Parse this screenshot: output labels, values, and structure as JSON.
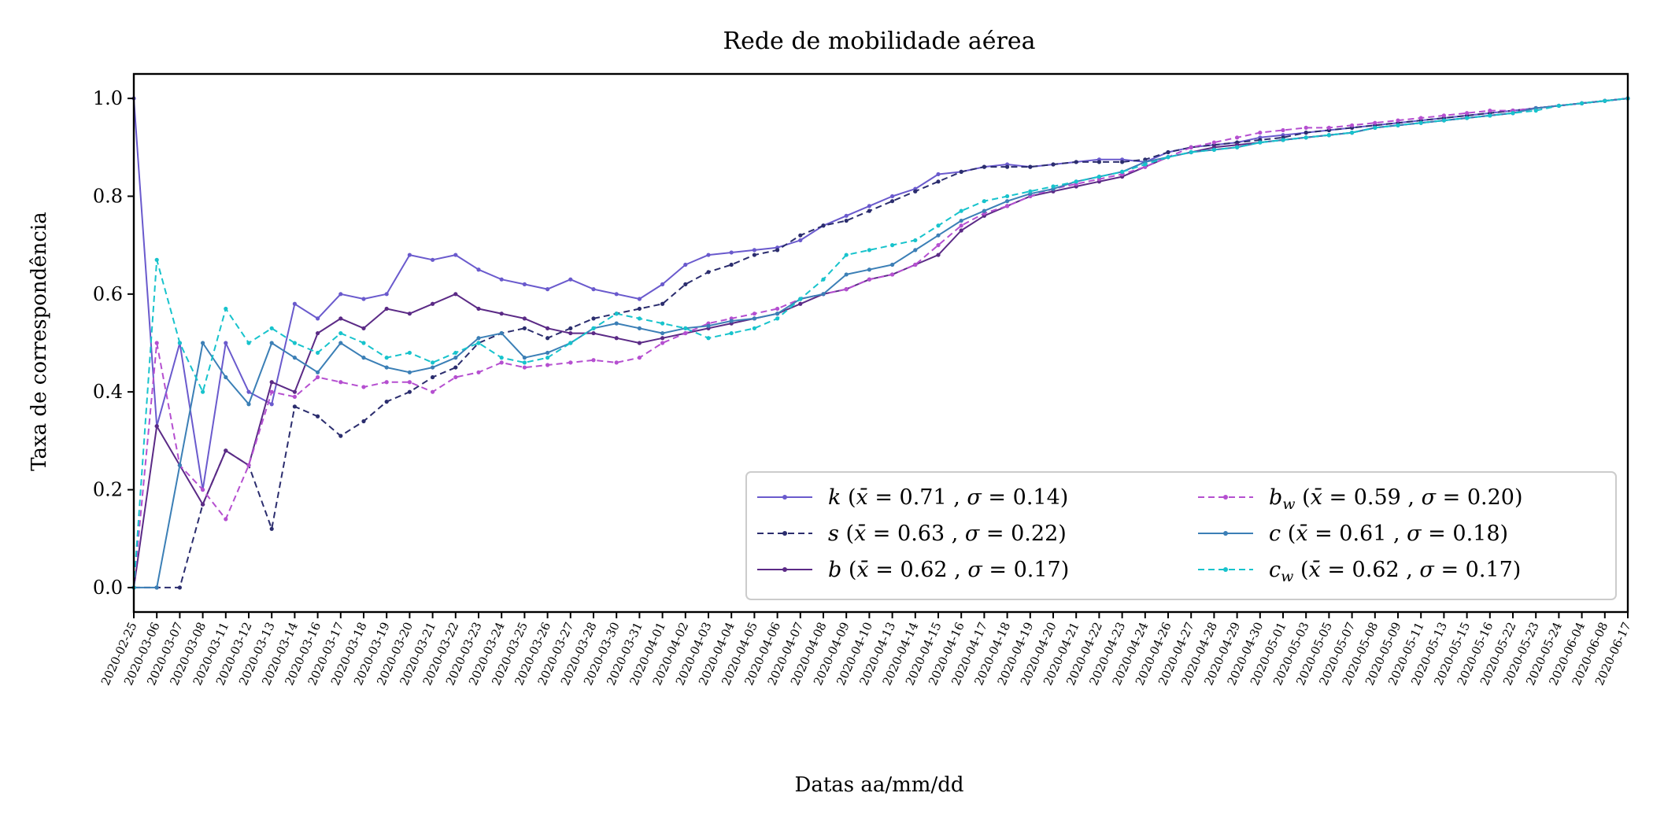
{
  "chart_data": {
    "type": "line",
    "title": "Rede de mobilidade aérea",
    "xlabel": "Datas aa/mm/dd",
    "ylabel": "Taxa de correspondência",
    "ylim": [
      -0.05,
      1.05
    ],
    "yticks": [
      "0.0",
      "0.2",
      "0.4",
      "0.6",
      "0.8",
      "1.0"
    ],
    "grid": false,
    "legend_location": "lower-right",
    "legend_columns": 2,
    "categories": [
      "2020-02-25",
      "2020-03-06",
      "2020-03-07",
      "2020-03-08",
      "2020-03-11",
      "2020-03-12",
      "2020-03-13",
      "2020-03-14",
      "2020-03-16",
      "2020-03-17",
      "2020-03-18",
      "2020-03-19",
      "2020-03-20",
      "2020-03-21",
      "2020-03-22",
      "2020-03-23",
      "2020-03-24",
      "2020-03-25",
      "2020-03-26",
      "2020-03-27",
      "2020-03-28",
      "2020-03-30",
      "2020-03-31",
      "2020-04-01",
      "2020-04-02",
      "2020-04-03",
      "2020-04-04",
      "2020-04-05",
      "2020-04-06",
      "2020-04-07",
      "2020-04-08",
      "2020-04-09",
      "2020-04-10",
      "2020-04-13",
      "2020-04-14",
      "2020-04-15",
      "2020-04-16",
      "2020-04-17",
      "2020-04-18",
      "2020-04-19",
      "2020-04-20",
      "2020-04-21",
      "2020-04-22",
      "2020-04-23",
      "2020-04-24",
      "2020-04-26",
      "2020-04-27",
      "2020-04-28",
      "2020-04-29",
      "2020-04-30",
      "2020-05-01",
      "2020-05-03",
      "2020-05-05",
      "2020-05-07",
      "2020-05-08",
      "2020-05-09",
      "2020-05-11",
      "2020-05-13",
      "2020-05-15",
      "2020-05-16",
      "2020-05-22",
      "2020-05-23",
      "2020-05-24",
      "2020-06-04",
      "2020-06-08",
      "2020-06-17"
    ],
    "series": [
      {
        "name": "k",
        "mean": "0.71",
        "std": "0.14",
        "color": "#6a5acd",
        "dash": "solid",
        "values": [
          1.0,
          0.33,
          0.5,
          0.2,
          0.5,
          0.4,
          0.375,
          0.58,
          0.55,
          0.6,
          0.59,
          0.6,
          0.68,
          0.67,
          0.68,
          0.65,
          0.63,
          0.62,
          0.61,
          0.63,
          0.61,
          0.6,
          0.59,
          0.62,
          0.66,
          0.68,
          0.685,
          0.69,
          0.695,
          0.71,
          0.74,
          0.76,
          0.78,
          0.8,
          0.815,
          0.845,
          0.85,
          0.86,
          0.865,
          0.86,
          0.865,
          0.87,
          0.875,
          0.875,
          0.87,
          0.89,
          0.9,
          0.905,
          0.91,
          0.92,
          0.925,
          0.93,
          0.935,
          0.94,
          0.945,
          0.95,
          0.955,
          0.96,
          0.965,
          0.97,
          0.975,
          0.98,
          0.985,
          0.99,
          0.995,
          1.0
        ]
      },
      {
        "name": "s",
        "mean": "0.63",
        "std": "0.22",
        "color": "#2b2d6e",
        "dash": "dashed",
        "values": [
          0.0,
          0.0,
          0.0,
          0.17,
          0.28,
          0.25,
          0.12,
          0.37,
          0.35,
          0.31,
          0.34,
          0.38,
          0.4,
          0.43,
          0.45,
          0.5,
          0.52,
          0.53,
          0.51,
          0.53,
          0.55,
          0.56,
          0.57,
          0.58,
          0.62,
          0.645,
          0.66,
          0.68,
          0.69,
          0.72,
          0.74,
          0.75,
          0.77,
          0.79,
          0.81,
          0.83,
          0.85,
          0.86,
          0.86,
          0.86,
          0.865,
          0.87,
          0.87,
          0.87,
          0.875,
          0.89,
          0.9,
          0.905,
          0.91,
          0.915,
          0.92,
          0.93,
          0.935,
          0.94,
          0.945,
          0.95,
          0.955,
          0.96,
          0.965,
          0.97,
          0.975,
          0.98,
          0.985,
          0.99,
          0.995,
          1.0
        ]
      },
      {
        "name": "b",
        "mean": "0.62",
        "std": "0.17",
        "color": "#5b2a86",
        "dash": "solid",
        "values": [
          0.0,
          0.33,
          0.25,
          0.17,
          0.28,
          0.25,
          0.42,
          0.4,
          0.52,
          0.55,
          0.53,
          0.57,
          0.56,
          0.58,
          0.6,
          0.57,
          0.56,
          0.55,
          0.53,
          0.52,
          0.52,
          0.51,
          0.5,
          0.51,
          0.52,
          0.53,
          0.54,
          0.55,
          0.56,
          0.58,
          0.6,
          0.61,
          0.63,
          0.64,
          0.66,
          0.68,
          0.73,
          0.76,
          0.78,
          0.8,
          0.81,
          0.82,
          0.83,
          0.84,
          0.86,
          0.88,
          0.89,
          0.9,
          0.905,
          0.91,
          0.915,
          0.92,
          0.925,
          0.93,
          0.94,
          0.945,
          0.95,
          0.955,
          0.96,
          0.965,
          0.97,
          0.98,
          0.985,
          0.99,
          0.995,
          1.0
        ]
      },
      {
        "name": "b",
        "sub": "w",
        "mean": "0.59",
        "std": "0.20",
        "color": "#b54fd0",
        "dash": "dashed",
        "values": [
          0.0,
          0.5,
          0.25,
          0.2,
          0.14,
          0.25,
          0.4,
          0.39,
          0.43,
          0.42,
          0.41,
          0.42,
          0.42,
          0.4,
          0.43,
          0.44,
          0.46,
          0.45,
          0.455,
          0.46,
          0.465,
          0.46,
          0.47,
          0.5,
          0.52,
          0.54,
          0.55,
          0.56,
          0.57,
          0.59,
          0.6,
          0.61,
          0.63,
          0.64,
          0.66,
          0.7,
          0.74,
          0.765,
          0.78,
          0.8,
          0.815,
          0.825,
          0.835,
          0.845,
          0.86,
          0.88,
          0.9,
          0.91,
          0.92,
          0.93,
          0.935,
          0.94,
          0.94,
          0.945,
          0.95,
          0.955,
          0.96,
          0.965,
          0.97,
          0.975,
          0.975,
          0.98,
          0.985,
          0.99,
          0.995,
          1.0
        ]
      },
      {
        "name": "c",
        "mean": "0.61",
        "std": "0.18",
        "color": "#3b7fb6",
        "dash": "solid",
        "values": [
          0.0,
          0.0,
          0.25,
          0.5,
          0.43,
          0.375,
          0.5,
          0.47,
          0.44,
          0.5,
          0.47,
          0.45,
          0.44,
          0.45,
          0.47,
          0.51,
          0.52,
          0.47,
          0.48,
          0.5,
          0.53,
          0.54,
          0.53,
          0.52,
          0.53,
          0.535,
          0.545,
          0.55,
          0.56,
          0.59,
          0.6,
          0.64,
          0.65,
          0.66,
          0.69,
          0.72,
          0.75,
          0.77,
          0.79,
          0.805,
          0.815,
          0.83,
          0.84,
          0.85,
          0.87,
          0.88,
          0.89,
          0.895,
          0.9,
          0.91,
          0.915,
          0.92,
          0.925,
          0.93,
          0.94,
          0.945,
          0.95,
          0.955,
          0.96,
          0.965,
          0.97,
          0.98,
          0.985,
          0.99,
          0.995,
          1.0
        ]
      },
      {
        "name": "c",
        "sub": "w",
        "mean": "0.62",
        "std": "0.17",
        "color": "#17c3cc",
        "dash": "dashed",
        "values": [
          0.0,
          0.67,
          0.5,
          0.4,
          0.57,
          0.5,
          0.53,
          0.5,
          0.48,
          0.52,
          0.5,
          0.47,
          0.48,
          0.46,
          0.48,
          0.5,
          0.47,
          0.46,
          0.47,
          0.5,
          0.53,
          0.56,
          0.55,
          0.54,
          0.53,
          0.51,
          0.52,
          0.53,
          0.55,
          0.59,
          0.63,
          0.68,
          0.69,
          0.7,
          0.71,
          0.74,
          0.77,
          0.79,
          0.8,
          0.81,
          0.82,
          0.83,
          0.84,
          0.85,
          0.865,
          0.88,
          0.89,
          0.895,
          0.9,
          0.91,
          0.915,
          0.92,
          0.925,
          0.93,
          0.94,
          0.945,
          0.95,
          0.955,
          0.96,
          0.965,
          0.97,
          0.975,
          0.985,
          0.99,
          0.995,
          1.0
        ]
      }
    ]
  }
}
